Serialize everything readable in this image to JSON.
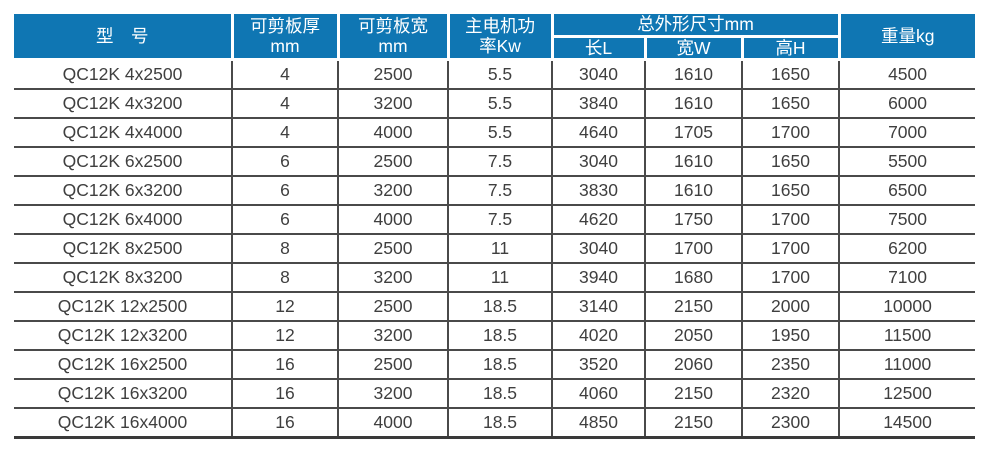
{
  "table": {
    "headers": {
      "model": "型　号",
      "thickness": "可剪板厚\nmm",
      "plate_width": "可剪板宽\nmm",
      "motor_power": "主电机功\n率Kw",
      "dimensions_group": "总外形尺寸mm",
      "length_l": "长L",
      "width_w": "宽W",
      "height_h": "高H",
      "weight": "重量kg"
    },
    "rows": [
      [
        "QC12K 4x2500",
        "4",
        "2500",
        "5.5",
        "3040",
        "1610",
        "1650",
        "4500"
      ],
      [
        "QC12K 4x3200",
        "4",
        "3200",
        "5.5",
        "3840",
        "1610",
        "1650",
        "6000"
      ],
      [
        "QC12K 4x4000",
        "4",
        "4000",
        "5.5",
        "4640",
        "1705",
        "1700",
        "7000"
      ],
      [
        "QC12K 6x2500",
        "6",
        "2500",
        "7.5",
        "3040",
        "1610",
        "1650",
        "5500"
      ],
      [
        "QC12K 6x3200",
        "6",
        "3200",
        "7.5",
        "3830",
        "1610",
        "1650",
        "6500"
      ],
      [
        "QC12K 6x4000",
        "6",
        "4000",
        "7.5",
        "4620",
        "1750",
        "1700",
        "7500"
      ],
      [
        "QC12K 8x2500",
        "8",
        "2500",
        "11",
        "3040",
        "1700",
        "1700",
        "6200"
      ],
      [
        "QC12K 8x3200",
        "8",
        "3200",
        "11",
        "3940",
        "1680",
        "1700",
        "7100"
      ],
      [
        "QC12K 12x2500",
        "12",
        "2500",
        "18.5",
        "3140",
        "2150",
        "2000",
        "10000"
      ],
      [
        "QC12K 12x3200",
        "12",
        "3200",
        "18.5",
        "4020",
        "2050",
        "1950",
        "11500"
      ],
      [
        "QC12K 16x2500",
        "16",
        "2500",
        "18.5",
        "3520",
        "2060",
        "2350",
        "11000"
      ],
      [
        "QC12K 16x3200",
        "16",
        "3200",
        "18.5",
        "4060",
        "2150",
        "2320",
        "12500"
      ],
      [
        "QC12K 16x4000",
        "16",
        "4000",
        "18.5",
        "4850",
        "2150",
        "2300",
        "14500"
      ]
    ],
    "colors": {
      "header_bg": "#0f76b3",
      "header_text": "#ffffff",
      "body_text": "#3f3f3f",
      "grid_line": "#4a4a4a"
    }
  }
}
